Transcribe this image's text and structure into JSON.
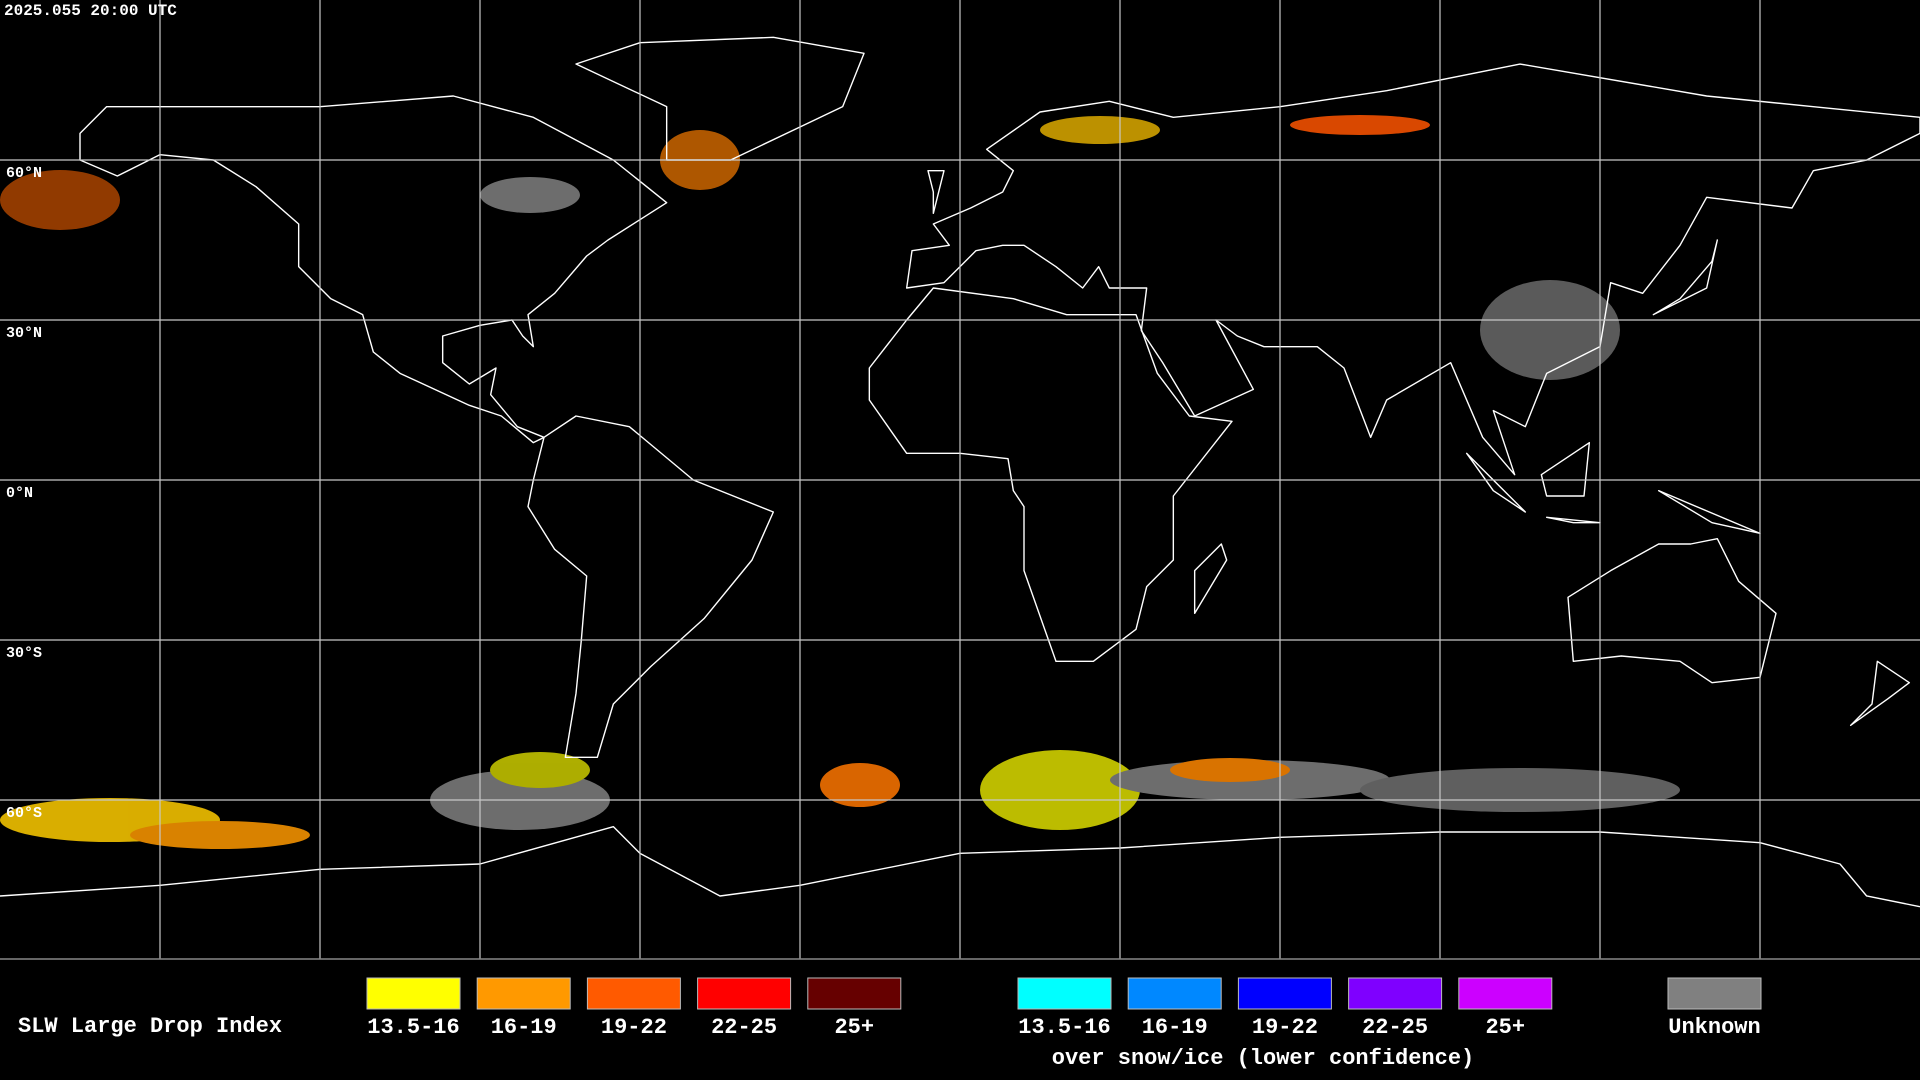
{
  "header": {
    "timestamp": "2025.055 20:00 UTC"
  },
  "map": {
    "latitude_labels": [
      "60°N",
      "30°N",
      "0°N",
      "30°S",
      "60°S"
    ]
  },
  "legend": {
    "title": "SLW Large Drop Index",
    "items": [
      {
        "label": "13.5-16",
        "color": "#ffff00"
      },
      {
        "label": "16-19",
        "color": "#ff9900"
      },
      {
        "label": "19-22",
        "color": "#ff5a00"
      },
      {
        "label": "22-25",
        "color": "#ff0000"
      },
      {
        "label": "25+",
        "color": "#660000"
      }
    ],
    "snow_items": [
      {
        "label": "13.5-16",
        "color": "#00ffff"
      },
      {
        "label": "16-19",
        "color": "#0088ff"
      },
      {
        "label": "19-22",
        "color": "#0000ff"
      },
      {
        "label": "22-25",
        "color": "#7f00ff"
      },
      {
        "label": "25+",
        "color": "#cc00ff"
      }
    ],
    "snow_caption": "over snow/ice (lower confidence)",
    "unknown": {
      "label": "Unknown",
      "color": "#808080"
    }
  }
}
